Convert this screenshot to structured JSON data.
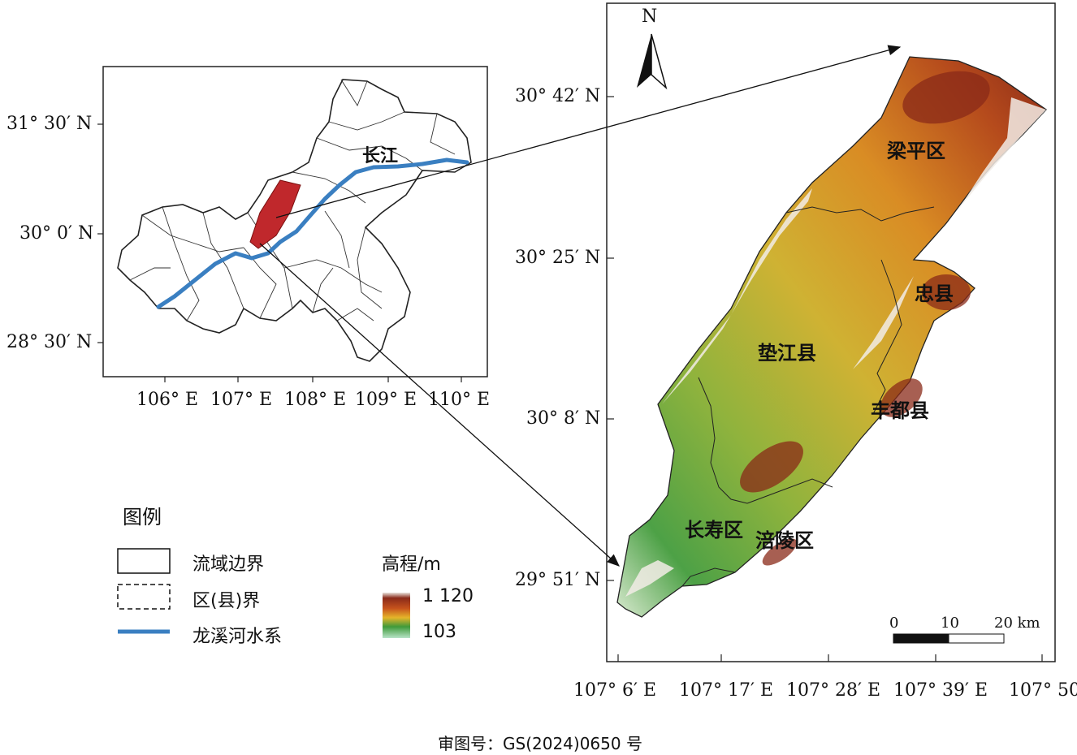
{
  "inset_map": {
    "lat_labels": [
      "31° 30′ N",
      "30° 0′ N",
      "28° 30′ N"
    ],
    "lon_labels": [
      "106° E",
      "107° E",
      "108° E",
      "109° E",
      "110° E"
    ],
    "river_label": "长江"
  },
  "main_map": {
    "north_label": "N",
    "lat_labels": [
      "30° 42′ N",
      "30° 25′ N",
      "30° 8′ N",
      "29° 51′ N"
    ],
    "lon_labels": [
      "107° 6′ E",
      "107° 17′ E",
      "107° 28′ E",
      "107° 39′ E",
      "107° 50"
    ],
    "districts": [
      "梁平区",
      "忠县",
      "垫江县",
      "丰都县",
      "长寿区",
      "涪陵区"
    ],
    "scale_bar": {
      "ticks": [
        "0",
        "10",
        "20 km"
      ]
    }
  },
  "legend": {
    "title": "图例",
    "items": [
      {
        "label": "流域边界",
        "style": "solid-box"
      },
      {
        "label": "区(县)界",
        "style": "dashed-box"
      },
      {
        "label": "龙溪河水系",
        "style": "blue-line",
        "color": "#3a7fc1"
      }
    ],
    "elevation": {
      "title": "高程/m",
      "max": "1 120",
      "min": "103"
    }
  },
  "footer": "审图号：GS(2024)0650 号",
  "colors": {
    "basin": "#c0282c",
    "river": "#3a7fc1"
  }
}
